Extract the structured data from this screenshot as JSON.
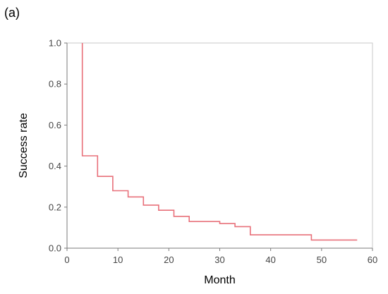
{
  "panel_label": "(a)",
  "chart_data": {
    "type": "line",
    "step": true,
    "xlabel": "Month",
    "ylabel": "Success rate",
    "xlim": [
      0,
      60
    ],
    "ylim": [
      0,
      1.0
    ],
    "xticks": [
      0,
      10,
      20,
      30,
      40,
      50,
      60
    ],
    "xtick_labels": [
      "0",
      "10",
      "20",
      "30",
      "40",
      "50",
      "60"
    ],
    "yticks": [
      0.0,
      0.2,
      0.4,
      0.6,
      0.8,
      1.0
    ],
    "ytick_labels": [
      "0.0",
      "0.2",
      "0.4",
      "0.6",
      "0.8",
      "1.0"
    ],
    "grid": false,
    "series": [
      {
        "color": "#e8707a",
        "x": [
          3,
          3,
          6,
          6,
          9,
          9,
          12,
          12,
          15,
          15,
          18,
          18,
          21,
          21,
          24,
          24,
          30,
          30,
          33,
          33,
          36,
          36,
          48,
          48,
          57
        ],
        "y": [
          1.0,
          0.45,
          0.45,
          0.35,
          0.35,
          0.28,
          0.28,
          0.25,
          0.25,
          0.21,
          0.21,
          0.185,
          0.185,
          0.155,
          0.155,
          0.13,
          0.13,
          0.12,
          0.12,
          0.105,
          0.105,
          0.065,
          0.065,
          0.04,
          0.04
        ]
      }
    ]
  }
}
